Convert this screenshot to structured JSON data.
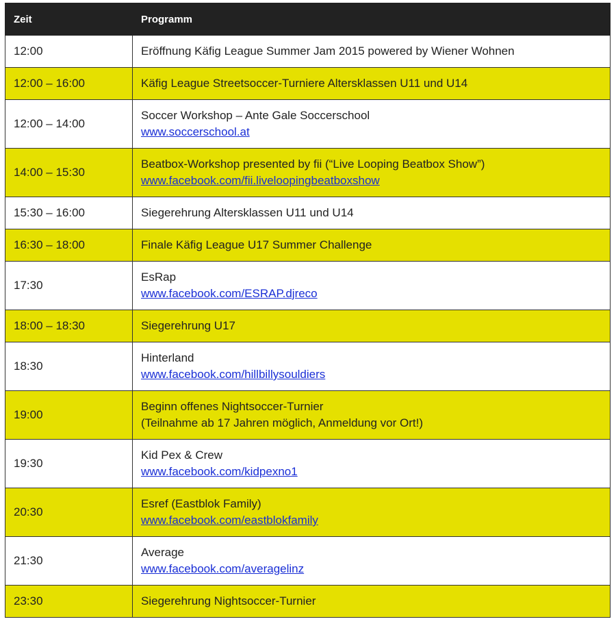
{
  "header": {
    "time": "Zeit",
    "program": "Programm"
  },
  "colors": {
    "header_bg": "#222222",
    "highlight": "#e5e000",
    "link": "#1a2fd6"
  },
  "rows": [
    {
      "time": "12:00",
      "title": "Eröffnung Käfig League Summer Jam 2015 powered by Wiener Wohnen",
      "sub": null,
      "link": null,
      "yellow": false
    },
    {
      "time": "12:00 – 16:00",
      "title": "Käfig League Streetsoccer-Turniere Altersklassen U11 und U14",
      "sub": null,
      "link": null,
      "yellow": true
    },
    {
      "time": "12:00 – 14:00",
      "title": "Soccer Workshop – Ante Gale Soccerschool",
      "sub": null,
      "link": "www.soccerschool.at",
      "yellow": false
    },
    {
      "time": "14:00 – 15:30",
      "title": "Beatbox-Workshop presented by fii (“Live Looping Beatbox Show”)",
      "sub": null,
      "link": "www.facebook.com/fii.liveloopingbeatboxshow",
      "yellow": true
    },
    {
      "time": "15:30 – 16:00",
      "title": "Siegerehrung Altersklassen U11 und U14",
      "sub": null,
      "link": null,
      "yellow": false
    },
    {
      "time": "16:30 – 18:00",
      "title": "Finale Käfig League U17 Summer Challenge",
      "sub": null,
      "link": null,
      "yellow": true
    },
    {
      "time": "17:30",
      "title": "EsRap",
      "sub": null,
      "link": "www.facebook.com/ESRAP.djreco",
      "yellow": false
    },
    {
      "time": "18:00 – 18:30",
      "title": "Siegerehrung U17",
      "sub": null,
      "link": null,
      "yellow": true
    },
    {
      "time": "18:30",
      "title": "Hinterland",
      "sub": null,
      "link": "www.facebook.com/hillbillysouldiers",
      "yellow": false
    },
    {
      "time": "19:00",
      "title": "Beginn offenes Nightsoccer-Turnier",
      "sub": "(Teilnahme ab 17 Jahren möglich, Anmeldung vor Ort!)",
      "link": null,
      "yellow": true
    },
    {
      "time": "19:30",
      "title": "Kid Pex & Crew",
      "sub": null,
      "link": "www.facebook.com/kidpexno1",
      "yellow": false
    },
    {
      "time": "20:30",
      "title": "Esref (Eastblok Family)",
      "sub": null,
      "link": "www.facebook.com/eastblokfamily",
      "yellow": true
    },
    {
      "time": "21:30",
      "title": "Average",
      "sub": null,
      "link": "www.facebook.com/averagelinz",
      "yellow": false
    },
    {
      "time": "23:30",
      "title": "Siegerehrung Nightsoccer-Turnier",
      "sub": null,
      "link": null,
      "yellow": true
    }
  ]
}
